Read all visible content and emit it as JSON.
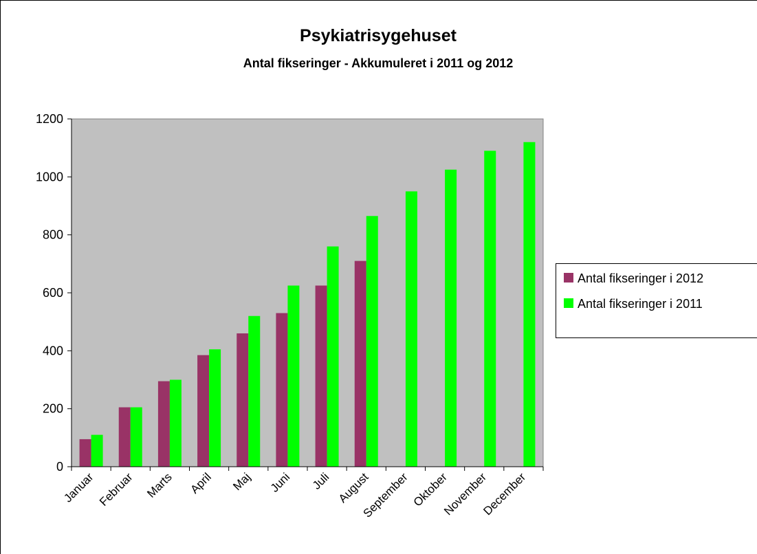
{
  "chart_data": {
    "type": "bar",
    "title": "Psykiatrisygehuset",
    "subtitle": "Antal fikseringer - Akkumuleret i 2011 og 2012",
    "categories": [
      "Januar",
      "Februar",
      "Marts",
      "April",
      "Maj",
      "Juni",
      "Juli",
      "August",
      "September",
      "Oktober",
      "November",
      "December"
    ],
    "series": [
      {
        "name": "Antal fikseringer i 2012",
        "color": "#993366",
        "values": [
          95,
          205,
          295,
          385,
          460,
          530,
          625,
          710,
          null,
          null,
          null,
          null
        ]
      },
      {
        "name": "Antal fikseringer i 2011",
        "color": "#00ff00",
        "values": [
          110,
          205,
          300,
          405,
          520,
          625,
          760,
          865,
          950,
          1025,
          1090,
          1120
        ]
      }
    ],
    "ylim": [
      0,
      1200
    ],
    "yticks": [
      0,
      200,
      400,
      600,
      800,
      1000,
      1200
    ],
    "grid": false,
    "legend": "right",
    "plot_background": "#c0c0c0"
  }
}
